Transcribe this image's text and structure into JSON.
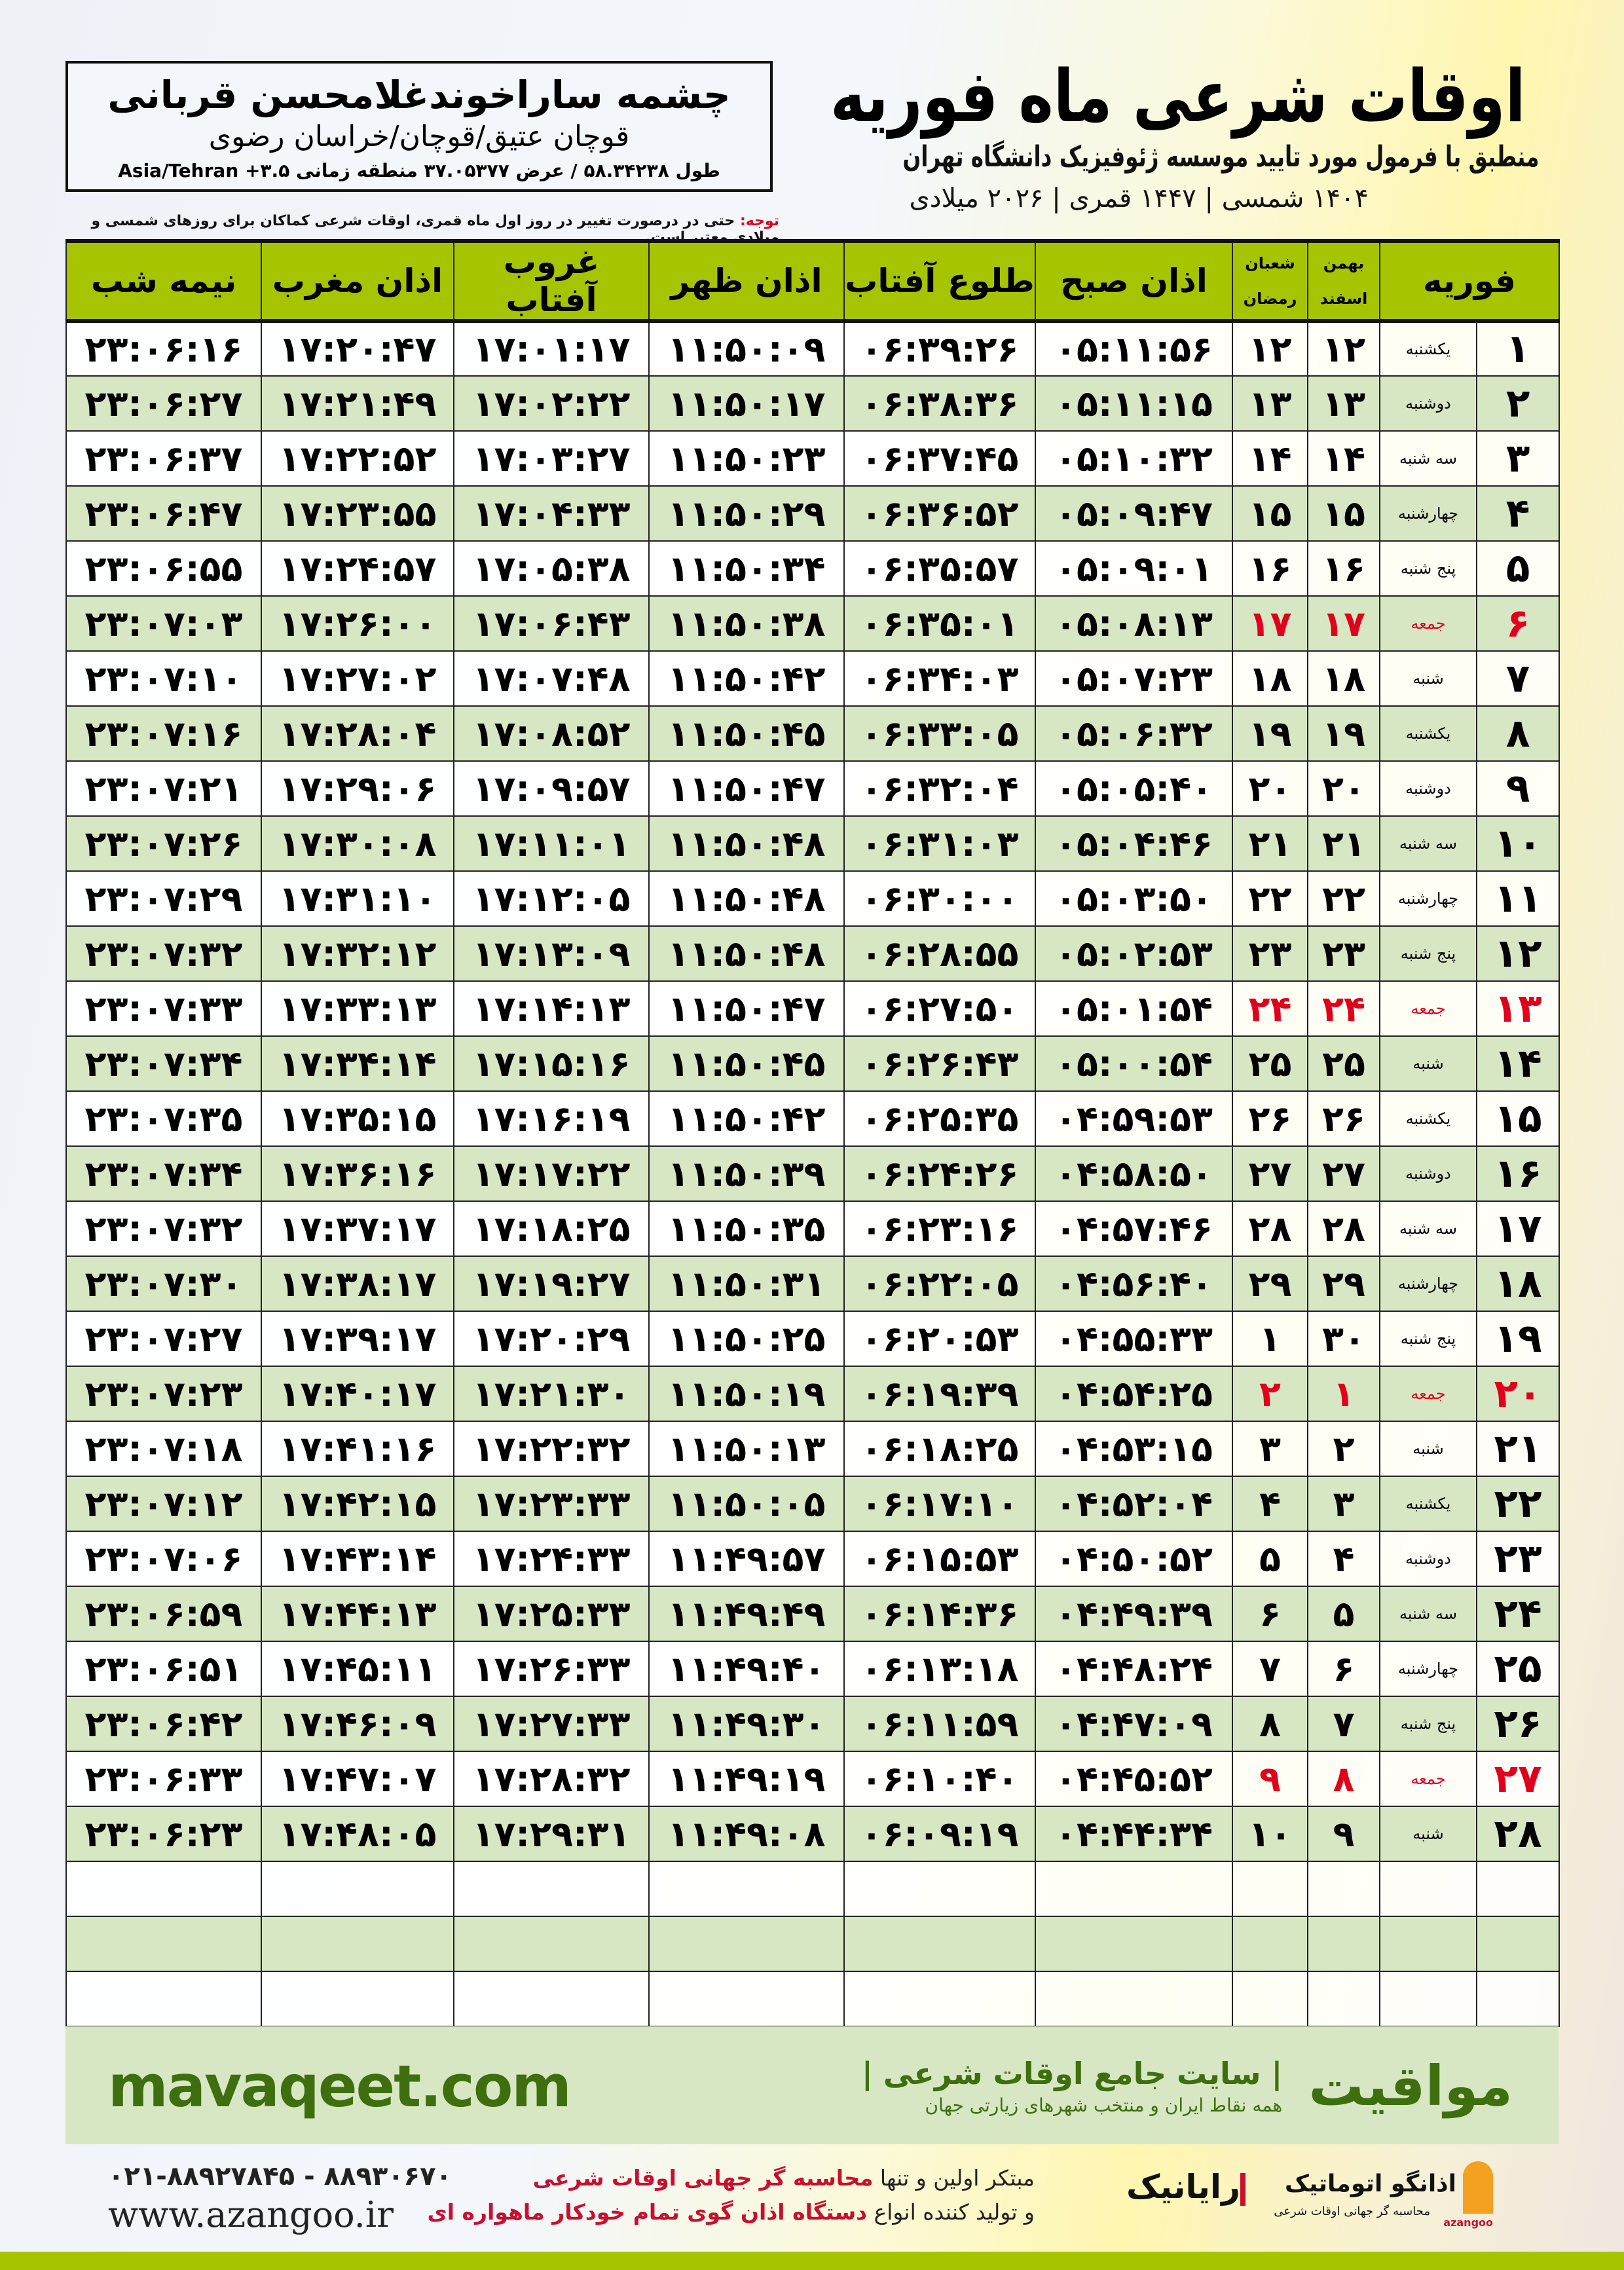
{
  "header": {
    "title": "اوقات شرعی ماه فوریه",
    "subtitle": "منطبق با فرمول مورد تایید موسسه ژئوفیزیک دانشگاه تهران",
    "dates": "۱۴۰۴ شمسی | ۱۴۴۷ قمری | ۲۰۲۶ میلادی"
  },
  "location": {
    "name": "چشمه ساراخوندغلامحسن قربانی",
    "path": "قوچان عتیق/قوچان/خراسان رضوی",
    "coords": "طول ۵۸.۳۴۲۳۸ / عرض ۳۷.۰۵۳۷۷ منطقه زمانی ۳.۵+ Asia/Tehran"
  },
  "note": {
    "label": "توجه:",
    "text": " حتی در درصورت تغییر در روز اول ماه قمری، اوقات شرعی کماکان برای روزهای شمسی و میلادی معتبر است."
  },
  "columns": {
    "month": "فوریه",
    "solar_top": "بهمن",
    "solar_bottom": "اسفند",
    "lunar_top": "شعبان",
    "lunar_bottom": "رمضان",
    "fajr": "اذان صبح",
    "sunrise": "طلوع آفتاب",
    "dhuhr": "اذان ظهر",
    "sunset": "غروب آفتاب",
    "maghrib": "اذان مغرب",
    "midnight": "نیمه شب"
  },
  "colors": {
    "header_green": "#a6c400",
    "row_green": "#d7e7c4",
    "friday_red": "#e0001b",
    "brand_green": "#3f6e0e"
  },
  "rows": [
    {
      "day": "۱",
      "weekday": "یکشنبه",
      "solar": "۱۲",
      "lunar": "۱۲",
      "times": [
        "۰۵:۱۱:۵۶",
        "۰۶:۳۹:۲۶",
        "۱۱:۵۰:۰۹",
        "۱۷:۰۱:۱۷",
        "۱۷:۲۰:۴۷",
        "۲۳:۰۶:۱۶"
      ]
    },
    {
      "day": "۲",
      "weekday": "دوشنبه",
      "solar": "۱۳",
      "lunar": "۱۳",
      "times": [
        "۰۵:۱۱:۱۵",
        "۰۶:۳۸:۳۶",
        "۱۱:۵۰:۱۷",
        "۱۷:۰۲:۲۲",
        "۱۷:۲۱:۴۹",
        "۲۳:۰۶:۲۷"
      ]
    },
    {
      "day": "۳",
      "weekday": "سه شنبه",
      "solar": "۱۴",
      "lunar": "۱۴",
      "times": [
        "۰۵:۱۰:۳۲",
        "۰۶:۳۷:۴۵",
        "۱۱:۵۰:۲۳",
        "۱۷:۰۳:۲۷",
        "۱۷:۲۲:۵۲",
        "۲۳:۰۶:۳۷"
      ]
    },
    {
      "day": "۴",
      "weekday": "چهارشنبه",
      "solar": "۱۵",
      "lunar": "۱۵",
      "times": [
        "۰۵:۰۹:۴۷",
        "۰۶:۳۶:۵۲",
        "۱۱:۵۰:۲۹",
        "۱۷:۰۴:۳۳",
        "۱۷:۲۳:۵۵",
        "۲۳:۰۶:۴۷"
      ]
    },
    {
      "day": "۵",
      "weekday": "پنج شنبه",
      "solar": "۱۶",
      "lunar": "۱۶",
      "times": [
        "۰۵:۰۹:۰۱",
        "۰۶:۳۵:۵۷",
        "۱۱:۵۰:۳۴",
        "۱۷:۰۵:۳۸",
        "۱۷:۲۴:۵۷",
        "۲۳:۰۶:۵۵"
      ]
    },
    {
      "day": "۶",
      "weekday": "جمعه",
      "solar": "۱۷",
      "lunar": "۱۷",
      "friday": true,
      "times": [
        "۰۵:۰۸:۱۳",
        "۰۶:۳۵:۰۱",
        "۱۱:۵۰:۳۸",
        "۱۷:۰۶:۴۳",
        "۱۷:۲۶:۰۰",
        "۲۳:۰۷:۰۳"
      ]
    },
    {
      "day": "۷",
      "weekday": "شنبه",
      "solar": "۱۸",
      "lunar": "۱۸",
      "times": [
        "۰۵:۰۷:۲۳",
        "۰۶:۳۴:۰۳",
        "۱۱:۵۰:۴۲",
        "۱۷:۰۷:۴۸",
        "۱۷:۲۷:۰۲",
        "۲۳:۰۷:۱۰"
      ]
    },
    {
      "day": "۸",
      "weekday": "یکشنبه",
      "solar": "۱۹",
      "lunar": "۱۹",
      "times": [
        "۰۵:۰۶:۳۲",
        "۰۶:۳۳:۰۵",
        "۱۱:۵۰:۴۵",
        "۱۷:۰۸:۵۲",
        "۱۷:۲۸:۰۴",
        "۲۳:۰۷:۱۶"
      ]
    },
    {
      "day": "۹",
      "weekday": "دوشنبه",
      "solar": "۲۰",
      "lunar": "۲۰",
      "times": [
        "۰۵:۰۵:۴۰",
        "۰۶:۳۲:۰۴",
        "۱۱:۵۰:۴۷",
        "۱۷:۰۹:۵۷",
        "۱۷:۲۹:۰۶",
        "۲۳:۰۷:۲۱"
      ]
    },
    {
      "day": "۱۰",
      "weekday": "سه شنبه",
      "solar": "۲۱",
      "lunar": "۲۱",
      "times": [
        "۰۵:۰۴:۴۶",
        "۰۶:۳۱:۰۳",
        "۱۱:۵۰:۴۸",
        "۱۷:۱۱:۰۱",
        "۱۷:۳۰:۰۸",
        "۲۳:۰۷:۲۶"
      ]
    },
    {
      "day": "۱۱",
      "weekday": "چهارشنبه",
      "solar": "۲۲",
      "lunar": "۲۲",
      "times": [
        "۰۵:۰۳:۵۰",
        "۰۶:۳۰:۰۰",
        "۱۱:۵۰:۴۸",
        "۱۷:۱۲:۰۵",
        "۱۷:۳۱:۱۰",
        "۲۳:۰۷:۲۹"
      ]
    },
    {
      "day": "۱۲",
      "weekday": "پنج شنبه",
      "solar": "۲۳",
      "lunar": "۲۳",
      "times": [
        "۰۵:۰۲:۵۳",
        "۰۶:۲۸:۵۵",
        "۱۱:۵۰:۴۸",
        "۱۷:۱۳:۰۹",
        "۱۷:۳۲:۱۲",
        "۲۳:۰۷:۳۲"
      ]
    },
    {
      "day": "۱۳",
      "weekday": "جمعه",
      "solar": "۲۴",
      "lunar": "۲۴",
      "friday": true,
      "times": [
        "۰۵:۰۱:۵۴",
        "۰۶:۲۷:۵۰",
        "۱۱:۵۰:۴۷",
        "۱۷:۱۴:۱۳",
        "۱۷:۳۳:۱۳",
        "۲۳:۰۷:۳۳"
      ]
    },
    {
      "day": "۱۴",
      "weekday": "شنبه",
      "solar": "۲۵",
      "lunar": "۲۵",
      "times": [
        "۰۵:۰۰:۵۴",
        "۰۶:۲۶:۴۳",
        "۱۱:۵۰:۴۵",
        "۱۷:۱۵:۱۶",
        "۱۷:۳۴:۱۴",
        "۲۳:۰۷:۳۴"
      ]
    },
    {
      "day": "۱۵",
      "weekday": "یکشنبه",
      "solar": "۲۶",
      "lunar": "۲۶",
      "times": [
        "۰۴:۵۹:۵۳",
        "۰۶:۲۵:۳۵",
        "۱۱:۵۰:۴۲",
        "۱۷:۱۶:۱۹",
        "۱۷:۳۵:۱۵",
        "۲۳:۰۷:۳۵"
      ]
    },
    {
      "day": "۱۶",
      "weekday": "دوشنبه",
      "solar": "۲۷",
      "lunar": "۲۷",
      "times": [
        "۰۴:۵۸:۵۰",
        "۰۶:۲۴:۲۶",
        "۱۱:۵۰:۳۹",
        "۱۷:۱۷:۲۲",
        "۱۷:۳۶:۱۶",
        "۲۳:۰۷:۳۴"
      ]
    },
    {
      "day": "۱۷",
      "weekday": "سه شنبه",
      "solar": "۲۸",
      "lunar": "۲۸",
      "times": [
        "۰۴:۵۷:۴۶",
        "۰۶:۲۳:۱۶",
        "۱۱:۵۰:۳۵",
        "۱۷:۱۸:۲۵",
        "۱۷:۳۷:۱۷",
        "۲۳:۰۷:۳۲"
      ]
    },
    {
      "day": "۱۸",
      "weekday": "چهارشنبه",
      "solar": "۲۹",
      "lunar": "۲۹",
      "times": [
        "۰۴:۵۶:۴۰",
        "۰۶:۲۲:۰۵",
        "۱۱:۵۰:۳۱",
        "۱۷:۱۹:۲۷",
        "۱۷:۳۸:۱۷",
        "۲۳:۰۷:۳۰"
      ]
    },
    {
      "day": "۱۹",
      "weekday": "پنج شنبه",
      "solar": "۳۰",
      "lunar": "۱",
      "times": [
        "۰۴:۵۵:۳۳",
        "۰۶:۲۰:۵۳",
        "۱۱:۵۰:۲۵",
        "۱۷:۲۰:۲۹",
        "۱۷:۳۹:۱۷",
        "۲۳:۰۷:۲۷"
      ]
    },
    {
      "day": "۲۰",
      "weekday": "جمعه",
      "solar": "۱",
      "lunar": "۲",
      "friday": true,
      "times": [
        "۰۴:۵۴:۲۵",
        "۰۶:۱۹:۳۹",
        "۱۱:۵۰:۱۹",
        "۱۷:۲۱:۳۰",
        "۱۷:۴۰:۱۷",
        "۲۳:۰۷:۲۳"
      ]
    },
    {
      "day": "۲۱",
      "weekday": "شنبه",
      "solar": "۲",
      "lunar": "۳",
      "times": [
        "۰۴:۵۳:۱۵",
        "۰۶:۱۸:۲۵",
        "۱۱:۵۰:۱۳",
        "۱۷:۲۲:۳۲",
        "۱۷:۴۱:۱۶",
        "۲۳:۰۷:۱۸"
      ]
    },
    {
      "day": "۲۲",
      "weekday": "یکشنبه",
      "solar": "۳",
      "lunar": "۴",
      "times": [
        "۰۴:۵۲:۰۴",
        "۰۶:۱۷:۱۰",
        "۱۱:۵۰:۰۵",
        "۱۷:۲۳:۳۳",
        "۱۷:۴۲:۱۵",
        "۲۳:۰۷:۱۲"
      ]
    },
    {
      "day": "۲۳",
      "weekday": "دوشنبه",
      "solar": "۴",
      "lunar": "۵",
      "times": [
        "۰۴:۵۰:۵۲",
        "۰۶:۱۵:۵۳",
        "۱۱:۴۹:۵۷",
        "۱۷:۲۴:۳۳",
        "۱۷:۴۳:۱۴",
        "۲۳:۰۷:۰۶"
      ]
    },
    {
      "day": "۲۴",
      "weekday": "سه شنبه",
      "solar": "۵",
      "lunar": "۶",
      "times": [
        "۰۴:۴۹:۳۹",
        "۰۶:۱۴:۳۶",
        "۱۱:۴۹:۴۹",
        "۱۷:۲۵:۳۳",
        "۱۷:۴۴:۱۳",
        "۲۳:۰۶:۵۹"
      ]
    },
    {
      "day": "۲۵",
      "weekday": "چهارشنبه",
      "solar": "۶",
      "lunar": "۷",
      "times": [
        "۰۴:۴۸:۲۴",
        "۰۶:۱۳:۱۸",
        "۱۱:۴۹:۴۰",
        "۱۷:۲۶:۳۳",
        "۱۷:۴۵:۱۱",
        "۲۳:۰۶:۵۱"
      ]
    },
    {
      "day": "۲۶",
      "weekday": "پنج شنبه",
      "solar": "۷",
      "lunar": "۸",
      "times": [
        "۰۴:۴۷:۰۹",
        "۰۶:۱۱:۵۹",
        "۱۱:۴۹:۳۰",
        "۱۷:۲۷:۳۳",
        "۱۷:۴۶:۰۹",
        "۲۳:۰۶:۴۲"
      ]
    },
    {
      "day": "۲۷",
      "weekday": "جمعه",
      "solar": "۸",
      "lunar": "۹",
      "friday": true,
      "times": [
        "۰۴:۴۵:۵۲",
        "۰۶:۱۰:۴۰",
        "۱۱:۴۹:۱۹",
        "۱۷:۲۸:۳۲",
        "۱۷:۴۷:۰۷",
        "۲۳:۰۶:۳۳"
      ]
    },
    {
      "day": "۲۸",
      "weekday": "شنبه",
      "solar": "۹",
      "lunar": "۱۰",
      "times": [
        "۰۴:۴۴:۳۴",
        "۰۶:۰۹:۱۹",
        "۱۱:۴۹:۰۸",
        "۱۷:۲۹:۳۱",
        "۱۷:۴۸:۰۵",
        "۲۳:۰۶:۲۳"
      ]
    }
  ],
  "footer": {
    "site": "mavaqeet.com",
    "brand": "مواقیت",
    "slogan": "| سایت جامع اوقات شرعی |",
    "slogan2": "همه نقاط ایران و منتخب شهرهای زیارتی جهان",
    "phone": "۰۲۱-۸۸۹۲۷۸۴۵ - ۸۸۹۳۰۶۷۰",
    "web": "www.azangoo.ir",
    "promo1_a": "مبتکر اولین و تنها ",
    "promo1_b": "محاسبه گر جهانی اوقات شرعی",
    "promo2_a": "و تولید کننده انواع ",
    "promo2_b": "دستگاه اذان گوی تمام خودکار ماهواره ای",
    "logo_rayanik": "رایانیک",
    "logo_azangoo": "اذانگو اتوماتیک",
    "logo_azangoo_sub": "محاسبه گر جهانی اوقات شرعی",
    "logo_azangoo_en": "azangoo"
  }
}
